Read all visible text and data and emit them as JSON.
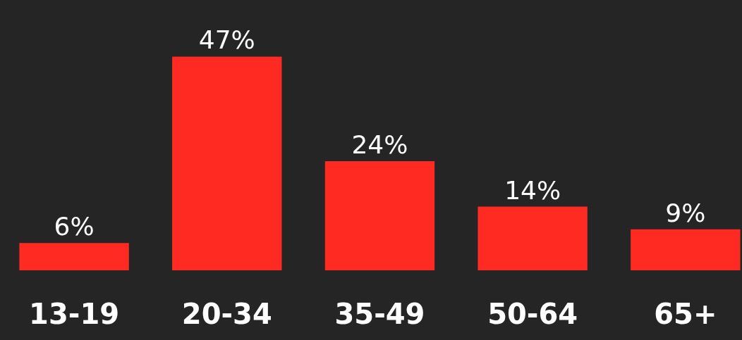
{
  "chart_data": {
    "type": "bar",
    "categories": [
      "13-19",
      "20-34",
      "35-49",
      "50-64",
      "65+"
    ],
    "values": [
      6,
      47,
      24,
      14,
      9
    ],
    "value_labels": [
      "6%",
      "47%",
      "24%",
      "14%",
      "9%"
    ],
    "color": "#ff2a22",
    "grid": false,
    "legend": false
  }
}
